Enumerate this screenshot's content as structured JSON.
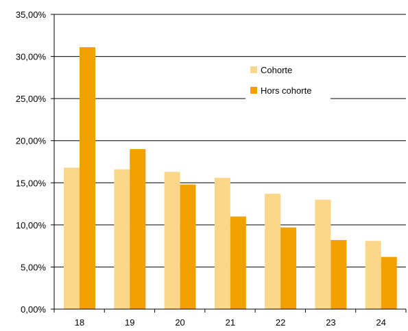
{
  "chart_data": {
    "type": "bar",
    "categories": [
      "18",
      "19",
      "20",
      "21",
      "22",
      "23",
      "24"
    ],
    "series": [
      {
        "name": "Cohorte",
        "color": "#fcd789",
        "values": [
          16.8,
          16.6,
          16.3,
          15.6,
          13.7,
          13.0,
          8.1
        ]
      },
      {
        "name": "Hors cohorte",
        "color": "#f2a000",
        "values": [
          31.1,
          19.0,
          14.8,
          11.0,
          9.7,
          8.2,
          6.2
        ]
      }
    ],
    "yticks": [
      "0,00%",
      "5,00%",
      "10,00%",
      "15,00%",
      "20,00%",
      "25,00%",
      "30,00%",
      "35,00%"
    ],
    "ylim": [
      0,
      35
    ],
    "grid": true,
    "legend_position": "top-right"
  }
}
